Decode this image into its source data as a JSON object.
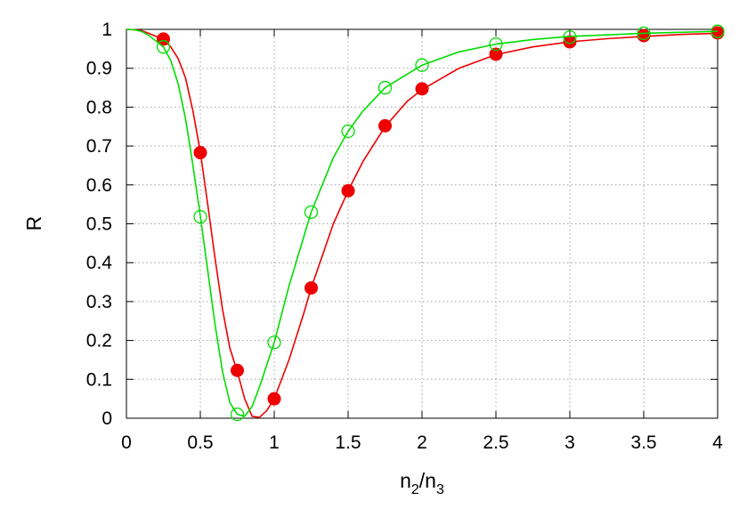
{
  "chart_data": {
    "type": "line",
    "xlabel": {
      "base": "n",
      "sub": "2",
      "slash": "/n",
      "sub2": "3"
    },
    "ylabel": "R",
    "xlim": [
      0,
      4
    ],
    "ylim": [
      0,
      1
    ],
    "xticks": [
      "0",
      "0.5",
      "1",
      "1.5",
      "2",
      "2.5",
      "3",
      "3.5",
      "4"
    ],
    "yticks": [
      "0",
      "0.1",
      "0.2",
      "0.3",
      "0.4",
      "0.5",
      "0.6",
      "0.7",
      "0.8",
      "0.9",
      "1"
    ],
    "grid": true,
    "series": [
      {
        "color": "#ee0000",
        "marker": "filled-circle",
        "curve": [
          [
            0,
            1
          ],
          [
            0.05,
            0.999
          ],
          [
            0.1,
            0.997
          ],
          [
            0.15,
            0.99
          ],
          [
            0.2,
            0.982
          ],
          [
            0.25,
            0.975
          ],
          [
            0.3,
            0.955
          ],
          [
            0.35,
            0.925
          ],
          [
            0.4,
            0.875
          ],
          [
            0.45,
            0.79
          ],
          [
            0.5,
            0.685
          ],
          [
            0.55,
            0.55
          ],
          [
            0.6,
            0.41
          ],
          [
            0.65,
            0.28
          ],
          [
            0.7,
            0.18
          ],
          [
            0.75,
            0.12
          ],
          [
            0.8,
            0.05
          ],
          [
            0.85,
            0.005
          ],
          [
            0.9,
            0.002
          ],
          [
            0.95,
            0.02
          ],
          [
            1.0,
            0.05
          ],
          [
            1.1,
            0.15
          ],
          [
            1.2,
            0.27
          ],
          [
            1.25,
            0.335
          ],
          [
            1.3,
            0.39
          ],
          [
            1.4,
            0.5
          ],
          [
            1.5,
            0.585
          ],
          [
            1.6,
            0.66
          ],
          [
            1.75,
            0.75
          ],
          [
            1.9,
            0.815
          ],
          [
            2.0,
            0.845
          ],
          [
            2.25,
            0.9
          ],
          [
            2.5,
            0.935
          ],
          [
            2.75,
            0.955
          ],
          [
            3.0,
            0.968
          ],
          [
            3.25,
            0.976
          ],
          [
            3.5,
            0.982
          ],
          [
            3.75,
            0.987
          ],
          [
            4.0,
            0.99
          ]
        ],
        "points": [
          [
            0.25,
            0.975
          ],
          [
            0.5,
            0.683
          ],
          [
            0.75,
            0.123
          ],
          [
            1.0,
            0.05
          ],
          [
            1.25,
            0.335
          ],
          [
            1.5,
            0.585
          ],
          [
            1.75,
            0.752
          ],
          [
            2.0,
            0.847
          ],
          [
            2.5,
            0.936
          ],
          [
            3.0,
            0.968
          ],
          [
            3.5,
            0.984
          ],
          [
            4.0,
            0.991
          ]
        ]
      },
      {
        "color": "#00dd00",
        "marker": "open-circle",
        "curve": [
          [
            0,
            1
          ],
          [
            0.05,
            0.999
          ],
          [
            0.1,
            0.995
          ],
          [
            0.15,
            0.985
          ],
          [
            0.2,
            0.97
          ],
          [
            0.25,
            0.955
          ],
          [
            0.3,
            0.92
          ],
          [
            0.35,
            0.86
          ],
          [
            0.4,
            0.77
          ],
          [
            0.45,
            0.65
          ],
          [
            0.5,
            0.52
          ],
          [
            0.55,
            0.38
          ],
          [
            0.6,
            0.24
          ],
          [
            0.65,
            0.12
          ],
          [
            0.7,
            0.04
          ],
          [
            0.75,
            0.01
          ],
          [
            0.8,
            0.005
          ],
          [
            0.85,
            0.03
          ],
          [
            0.9,
            0.08
          ],
          [
            1.0,
            0.195
          ],
          [
            1.1,
            0.34
          ],
          [
            1.25,
            0.53
          ],
          [
            1.4,
            0.67
          ],
          [
            1.5,
            0.738
          ],
          [
            1.6,
            0.79
          ],
          [
            1.75,
            0.85
          ],
          [
            2.0,
            0.908
          ],
          [
            2.25,
            0.942
          ],
          [
            2.5,
            0.962
          ],
          [
            2.75,
            0.974
          ],
          [
            3.0,
            0.982
          ],
          [
            3.5,
            0.99
          ],
          [
            4.0,
            0.995
          ]
        ],
        "points": [
          [
            0.25,
            0.955
          ],
          [
            0.5,
            0.518
          ],
          [
            0.75,
            0.01
          ],
          [
            1.0,
            0.195
          ],
          [
            1.25,
            0.53
          ],
          [
            1.5,
            0.738
          ],
          [
            1.75,
            0.85
          ],
          [
            2.0,
            0.908
          ],
          [
            2.5,
            0.962
          ],
          [
            3.0,
            0.98
          ],
          [
            3.5,
            0.99
          ],
          [
            4.0,
            0.995
          ]
        ]
      }
    ]
  }
}
